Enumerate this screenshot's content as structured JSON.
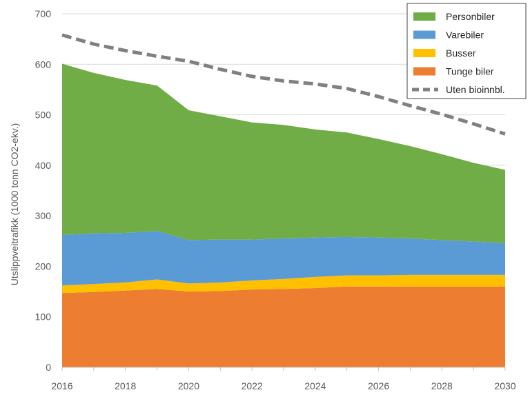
{
  "chart_data": {
    "type": "area",
    "stacked": true,
    "x": [
      2016,
      2017,
      2018,
      2019,
      2020,
      2021,
      2022,
      2023,
      2024,
      2025,
      2026,
      2027,
      2028,
      2029,
      2030
    ],
    "series": [
      {
        "name": "Tunge biler",
        "color": "#ED7D31",
        "values": [
          147,
          149,
          152,
          155,
          150,
          151,
          154,
          155,
          157,
          160,
          160,
          160,
          160,
          160,
          160
        ]
      },
      {
        "name": "Busser",
        "color": "#FFC000",
        "values": [
          15,
          16,
          16,
          19,
          16,
          17,
          18,
          20,
          22,
          22,
          22,
          23,
          23,
          23,
          23
        ]
      },
      {
        "name": "Varebiler",
        "color": "#5B9BD5",
        "values": [
          100,
          100,
          98,
          96,
          86,
          85,
          81,
          80,
          78,
          76,
          75,
          72,
          69,
          66,
          63
        ]
      },
      {
        "name": "Personbiler",
        "color": "#70AD47",
        "values": [
          339,
          318,
          303,
          288,
          257,
          244,
          232,
          225,
          214,
          207,
          195,
          183,
          170,
          156,
          145
        ]
      }
    ],
    "line_series": [
      {
        "name": "Uten bioinnbl.",
        "color": "#808080",
        "style": "dashed",
        "values": [
          658,
          640,
          627,
          616,
          606,
          590,
          576,
          567,
          561,
          552,
          536,
          518,
          501,
          482,
          462
        ]
      }
    ],
    "xlabel": "",
    "ylabel": "Utslippveitrafikk (1000 tonn CO2-ekv.)",
    "xticks": [
      2016,
      2018,
      2020,
      2022,
      2024,
      2026,
      2028,
      2030
    ],
    "yticks": [
      0,
      100,
      200,
      300,
      400,
      500,
      600,
      700
    ],
    "xlim": [
      2016,
      2030
    ],
    "ylim": [
      0,
      700
    ],
    "grid": true,
    "legend_position": "top-right",
    "legend_order": [
      "Personbiler",
      "Varebiler",
      "Busser",
      "Tunge biler",
      "Uten bioinnbl."
    ]
  }
}
